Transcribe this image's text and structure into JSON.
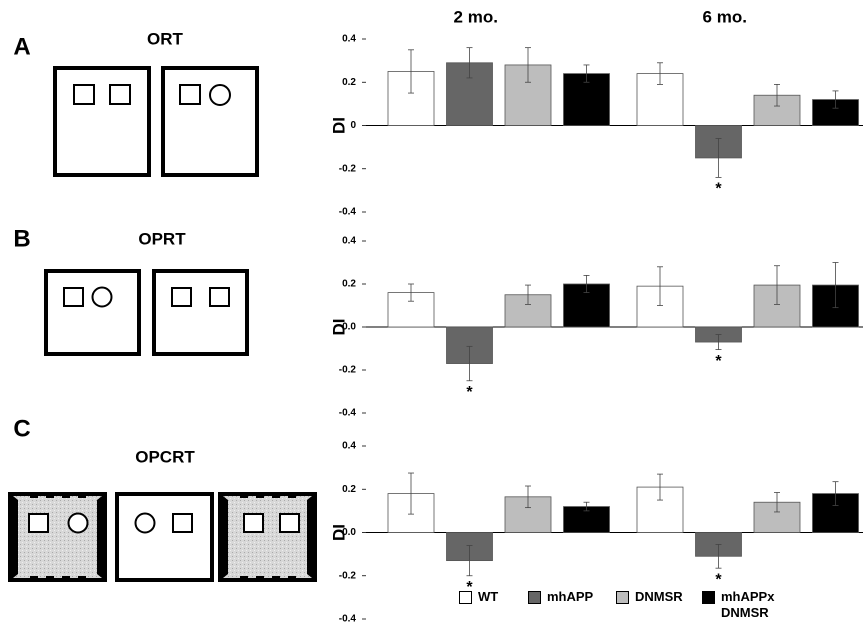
{
  "chart_data": [
    {
      "type": "bar",
      "panel": "A",
      "title": "ORT",
      "ylabel": "DI",
      "categories": [
        "2 mo.",
        "6 mo."
      ],
      "ylim": [
        -0.4,
        0.4
      ],
      "yticks": [
        -0.4,
        -0.2,
        0,
        0.2,
        0.4
      ],
      "series": [
        {
          "color": "#ffffff",
          "values": [
            0.25,
            0.24
          ],
          "errors": [
            0.1,
            0.05
          ]
        },
        {
          "color": "#666666",
          "values": [
            0.29,
            -0.15
          ],
          "errors": [
            0.07,
            0.09
          ],
          "annotations": [
            null,
            "*"
          ]
        },
        {
          "color": "#bdbdbd",
          "values": [
            0.28,
            0.14
          ],
          "errors": [
            0.08,
            0.05
          ]
        },
        {
          "color": "#000000",
          "values": [
            0.24,
            0.12
          ],
          "errors": [
            0.04,
            0.04
          ]
        }
      ]
    },
    {
      "type": "bar",
      "panel": "B",
      "title": "OPRT",
      "ylabel": "DI",
      "ylim": [
        -0.4,
        0.4
      ],
      "yticks": [
        -0.4,
        -0.2,
        {
          "value": 0,
          "label": "0.0"
        },
        0.2,
        0.4
      ],
      "series": [
        {
          "color": "#ffffff",
          "values": [
            0.16,
            0.19
          ],
          "errors": [
            0.04,
            0.09
          ]
        },
        {
          "color": "#666666",
          "values": [
            -0.17,
            -0.07
          ],
          "errors": [
            0.08,
            0.035
          ],
          "annotations": [
            "*",
            "*"
          ]
        },
        {
          "color": "#bdbdbd",
          "values": [
            0.15,
            0.195
          ],
          "errors": [
            0.045,
            0.09
          ]
        },
        {
          "color": "#000000",
          "values": [
            0.2,
            0.195
          ],
          "errors": [
            0.04,
            0.105
          ]
        }
      ]
    },
    {
      "type": "bar",
      "panel": "C",
      "title": "OPCRT",
      "ylabel": "DI",
      "ylim": [
        -0.4,
        0.4
      ],
      "yticks": [
        -0.4,
        -0.2,
        {
          "value": 0,
          "label": "0.0"
        },
        0.2,
        0.4
      ],
      "series": [
        {
          "name": "WT",
          "color": "#ffffff",
          "values": [
            0.18,
            0.21
          ],
          "errors": [
            0.095,
            0.06
          ]
        },
        {
          "name": "mhAPP",
          "color": "#666666",
          "values": [
            -0.13,
            -0.11
          ],
          "errors": [
            0.07,
            0.055
          ],
          "annotations": [
            "*",
            "*"
          ]
        },
        {
          "name": "DNMSR",
          "color": "#bdbdbd",
          "values": [
            0.165,
            0.14
          ],
          "errors": [
            0.05,
            0.045
          ]
        },
        {
          "name": "mhAPPx DNMSR",
          "color": "#000000",
          "values": [
            0.12,
            0.18
          ],
          "errors": [
            0.02,
            0.055
          ]
        }
      ]
    }
  ]
}
